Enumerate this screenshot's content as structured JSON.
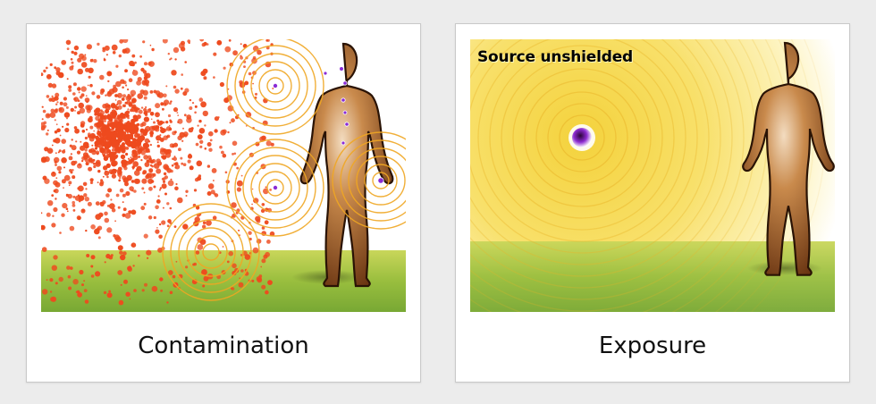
{
  "cards": [
    {
      "id": "contamination",
      "caption": "Contamination",
      "colors": {
        "particles": "#ee4a1e",
        "rings": "#f0a622",
        "hotspot": "#8a2bd6",
        "ground": "#86b33a",
        "figure": "#a1612c"
      }
    },
    {
      "id": "exposure",
      "caption": "Exposure",
      "source_label": "Source unshielded",
      "colors": {
        "glow": "#f6d944",
        "rings": "#e9b429",
        "source": "#3a0850",
        "ground": "#86b33a",
        "figure": "#a1612c"
      }
    }
  ]
}
